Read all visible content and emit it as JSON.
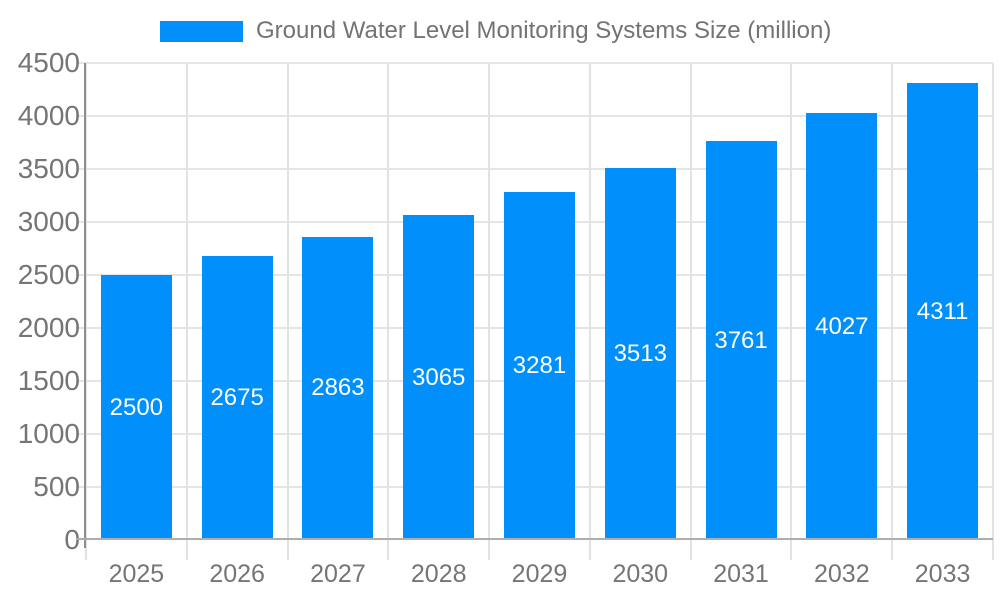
{
  "legend": {
    "label": "Ground Water Level Monitoring Systems Size (million)"
  },
  "chart_data": {
    "type": "bar",
    "title": "Ground Water Level Monitoring Systems Size (million)",
    "categories": [
      "2025",
      "2026",
      "2027",
      "2028",
      "2029",
      "2030",
      "2031",
      "2032",
      "2033"
    ],
    "values": [
      2500,
      2675,
      2863,
      3065,
      3281,
      3513,
      3761,
      4027,
      4311
    ],
    "series": [
      {
        "name": "Ground Water Level Monitoring Systems Size (million)",
        "values": [
          2500,
          2675,
          2863,
          3065,
          3281,
          3513,
          3761,
          4027,
          4311
        ]
      }
    ],
    "xlabel": "",
    "ylabel": "",
    "ylim": [
      0,
      4500
    ],
    "yticks": [
      0,
      500,
      1000,
      1500,
      2000,
      2500,
      3000,
      3500,
      4000,
      4500
    ],
    "grid": true,
    "legend_position": "top",
    "data_labels": "inside-center",
    "colors": {
      "bar": "#008FFB",
      "bar_label_text": "#ffffff",
      "axis_text": "#757575",
      "legend_text": "#737373",
      "gridline": "#e5e5e5",
      "y_axis_line": "#8e8e8e",
      "x_axis_line": "#adadad"
    }
  }
}
